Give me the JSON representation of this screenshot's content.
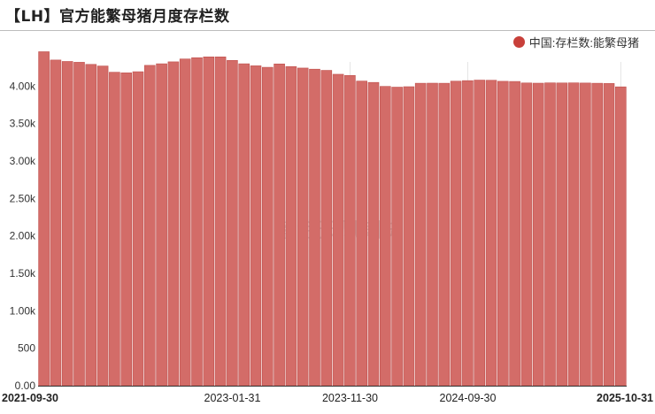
{
  "title": "【LH】官方能繁母猪月度存栏数",
  "watermark": "紫金天风期货",
  "colors": {
    "bar": "#d36c68",
    "bar_edge": "#c0504d",
    "legend": "#c8403a"
  },
  "chart_data": {
    "type": "bar",
    "title": "【LH】官方能繁母猪月度存栏数",
    "legend_position": "top-right",
    "grid": false,
    "ylim": [
      0,
      4500
    ],
    "yticks": [
      "0.00",
      "500",
      "1.00k",
      "1.50k",
      "2.00k",
      "2.50k",
      "3.00k",
      "3.50k",
      "4.00k"
    ],
    "xticks": [
      {
        "index": 0,
        "label": "2021-09-30",
        "bold": true
      },
      {
        "index": 16,
        "label": "2023-01-31",
        "bold": false
      },
      {
        "index": 26,
        "label": "2023-11-30",
        "bold": false
      },
      {
        "index": 36,
        "label": "2024-09-30",
        "bold": false
      },
      {
        "index": 49,
        "label": "2025-10-31",
        "bold": true
      }
    ],
    "series": [
      {
        "name": "中国:存栏数:能繁母猪",
        "values": [
          4459,
          4348,
          4329,
          4318,
          4290,
          4268,
          4185,
          4177,
          4192,
          4277,
          4298,
          4324,
          4362,
          4379,
          4390,
          4390,
          4343,
          4298,
          4271,
          4251,
          4296,
          4261,
          4241,
          4226,
          4210,
          4158,
          4142,
          4067,
          4049,
          3996,
          3986,
          3992,
          4038,
          4039,
          4038,
          4066,
          4073,
          4080,
          4078,
          4064,
          4062,
          4042,
          4039,
          4043,
          4042,
          4043,
          4041,
          4038,
          4035,
          3990
        ]
      }
    ]
  }
}
